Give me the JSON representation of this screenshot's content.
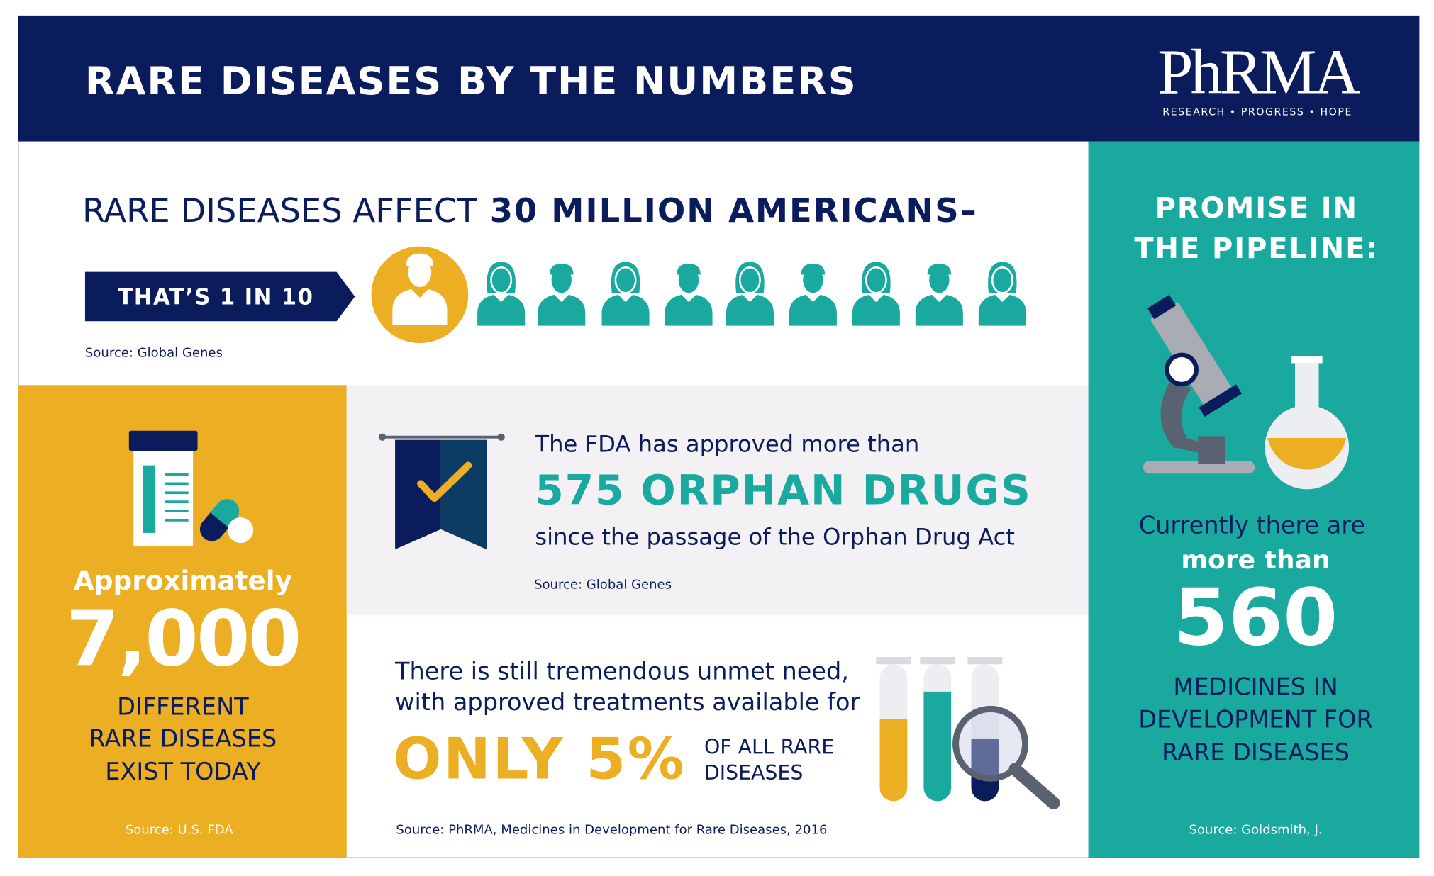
{
  "header": {
    "title": "RARE DISEASES BY THE NUMBERS",
    "logo": "PhRMA",
    "tagline": "RESEARCH • PROGRESS • HOPE"
  },
  "affect": {
    "lead": "RARE DISEASES AFFECT",
    "emphasis": "30 MILLION AMERICANS–",
    "ratio": "THAT’S 1 IN 10",
    "source": "Source: Global Genes"
  },
  "diseases": {
    "intro": "Approximately",
    "number": "7,000",
    "lines": [
      "DIFFERENT",
      "RARE DISEASES",
      "EXIST TODAY"
    ],
    "source": "Source: U.S. FDA"
  },
  "orphan": {
    "intro": "The FDA has approved more than",
    "number": "575 ORPHAN DRUGS",
    "outro": "since the passage of the Orphan Drug Act",
    "source": "Source: Global Genes"
  },
  "unmet": {
    "lines": [
      "There is still tremendous unmet need,",
      "with approved treatments available for"
    ],
    "emphasis": "ONLY 5%",
    "tail": [
      "OF ALL RARE",
      "DISEASES"
    ],
    "source": "Source: PhRMA, Medicines in Development for Rare Diseases, 2016"
  },
  "pipeline": {
    "title": [
      "PROMISE IN",
      "THE PIPELINE:"
    ],
    "intro": "Currently there are",
    "qualifier": "more than",
    "number": "560",
    "lines": [
      "MEDICINES IN",
      "DEVELOPMENT FOR",
      "RARE DISEASES"
    ],
    "source": "Source: Goldsmith, J."
  }
}
